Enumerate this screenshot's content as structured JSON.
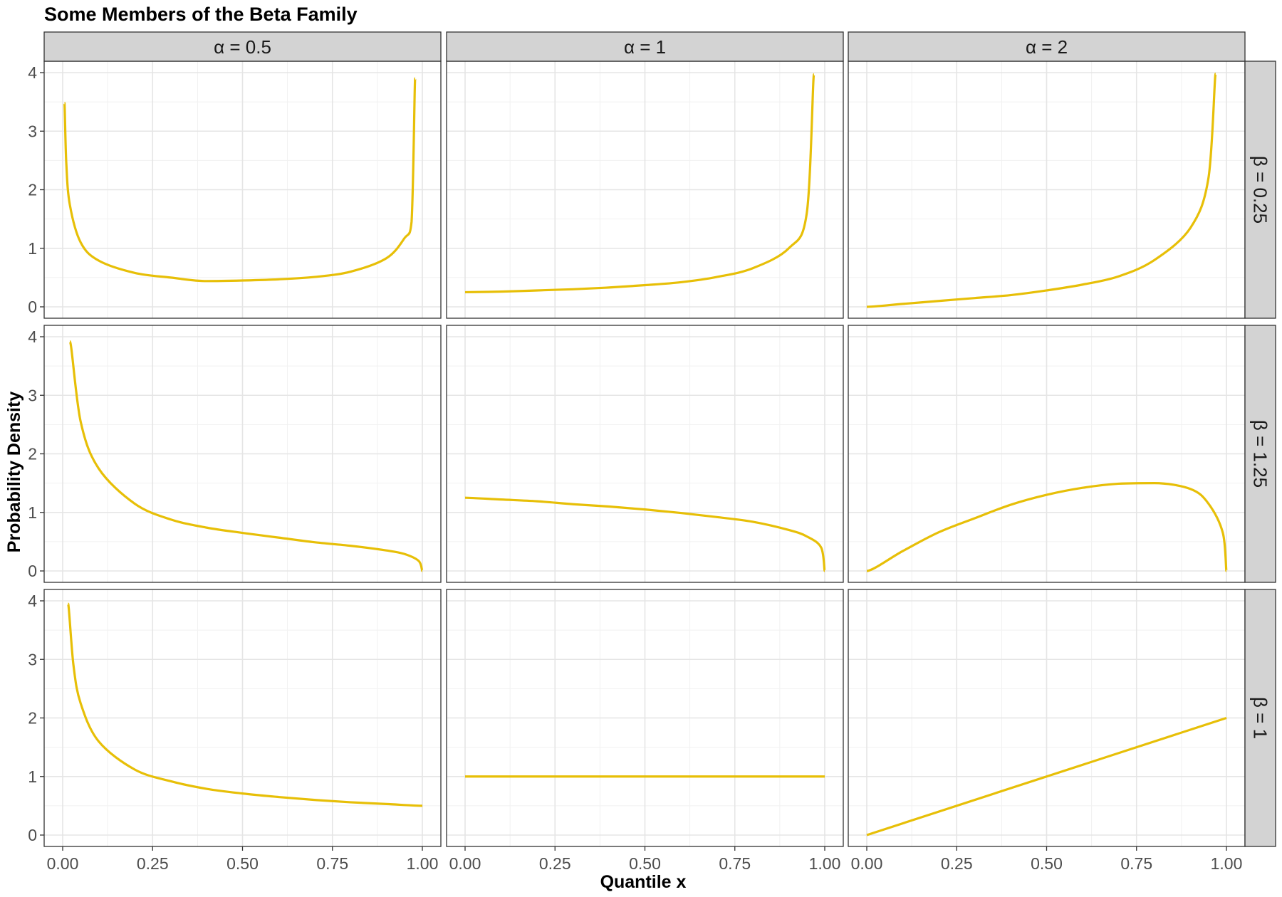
{
  "chart_data": {
    "type": "line",
    "title": "Some Members of the Beta Family",
    "xlabel": "Quantile x",
    "ylabel": "Probability Density",
    "xlim": [
      0,
      1
    ],
    "ylim": [
      0,
      4
    ],
    "x_ticks": [
      0,
      0.25,
      0.5,
      0.75,
      1
    ],
    "x_tick_labels": [
      "0.00",
      "0.25",
      "0.50",
      "0.75",
      "1.00"
    ],
    "y_ticks": [
      0,
      1,
      2,
      3,
      4
    ],
    "y_tick_labels": [
      "0",
      "1",
      "2",
      "3",
      "4"
    ],
    "grid": true,
    "line_color": "#E7BF07",
    "facet_columns": [
      {
        "label": "α = 0.5",
        "alpha": 0.5
      },
      {
        "label": "α = 1",
        "alpha": 1
      },
      {
        "label": "α = 2",
        "alpha": 2
      }
    ],
    "facet_rows": [
      {
        "label": "β = 0.25",
        "beta": 0.25
      },
      {
        "label": "β = 1.25",
        "beta": 1.25
      },
      {
        "label": "β = 1",
        "beta": 1
      }
    ],
    "panels": [
      {
        "row": 0,
        "col": 0,
        "x": [
          0.005,
          0.01,
          0.02,
          0.05,
          0.1,
          0.2,
          0.3,
          0.4,
          0.5,
          0.6,
          0.7,
          0.8,
          0.9,
          0.95,
          0.97,
          0.98
        ],
        "y": [
          3.48,
          2.46,
          1.74,
          1.1,
          0.79,
          0.58,
          0.5,
          0.44,
          0.45,
          0.47,
          0.51,
          0.6,
          0.83,
          1.17,
          1.45,
          3.9
        ]
      },
      {
        "row": 0,
        "col": 1,
        "x": [
          0,
          0.1,
          0.2,
          0.3,
          0.4,
          0.5,
          0.6,
          0.7,
          0.8,
          0.9,
          0.95,
          0.97
        ],
        "y": [
          0.25,
          0.26,
          0.28,
          0.3,
          0.33,
          0.37,
          0.42,
          0.51,
          0.66,
          1.0,
          1.6,
          3.97
        ]
      },
      {
        "row": 0,
        "col": 2,
        "x": [
          0,
          0.1,
          0.2,
          0.3,
          0.4,
          0.5,
          0.6,
          0.7,
          0.8,
          0.9,
          0.95,
          0.97
        ],
        "y": [
          0,
          0.05,
          0.1,
          0.15,
          0.2,
          0.28,
          0.38,
          0.52,
          0.8,
          1.35,
          2.2,
          3.98
        ]
      },
      {
        "row": 1,
        "col": 0,
        "x": [
          0.02,
          0.05,
          0.1,
          0.2,
          0.3,
          0.4,
          0.5,
          0.6,
          0.7,
          0.8,
          0.9,
          0.95,
          0.99,
          1.0
        ],
        "y": [
          3.92,
          2.55,
          1.75,
          1.15,
          0.88,
          0.74,
          0.65,
          0.57,
          0.49,
          0.43,
          0.35,
          0.29,
          0.17,
          0.0
        ]
      },
      {
        "row": 1,
        "col": 1,
        "x": [
          0,
          0.1,
          0.2,
          0.3,
          0.4,
          0.5,
          0.6,
          0.7,
          0.8,
          0.9,
          0.95,
          0.99,
          1.0
        ],
        "y": [
          1.25,
          1.22,
          1.19,
          1.14,
          1.1,
          1.05,
          0.99,
          0.92,
          0.84,
          0.7,
          0.59,
          0.4,
          0.0
        ]
      },
      {
        "row": 1,
        "col": 2,
        "x": [
          0,
          0.1,
          0.2,
          0.3,
          0.4,
          0.5,
          0.6,
          0.7,
          0.8,
          0.9,
          0.95,
          0.99,
          1.0
        ],
        "y": [
          0,
          0.34,
          0.66,
          0.9,
          1.13,
          1.3,
          1.42,
          1.49,
          1.5,
          1.4,
          1.15,
          0.65,
          0.0
        ]
      },
      {
        "row": 2,
        "col": 0,
        "x": [
          0.015,
          0.03,
          0.05,
          0.1,
          0.2,
          0.3,
          0.4,
          0.5,
          0.6,
          0.7,
          0.8,
          0.9,
          1.0
        ],
        "y": [
          3.95,
          2.9,
          2.25,
          1.6,
          1.12,
          0.92,
          0.79,
          0.71,
          0.65,
          0.6,
          0.56,
          0.53,
          0.5
        ]
      },
      {
        "row": 2,
        "col": 1,
        "x": [
          0,
          1
        ],
        "y": [
          1,
          1
        ]
      },
      {
        "row": 2,
        "col": 2,
        "x": [
          0,
          1
        ],
        "y": [
          0,
          2
        ]
      }
    ]
  }
}
